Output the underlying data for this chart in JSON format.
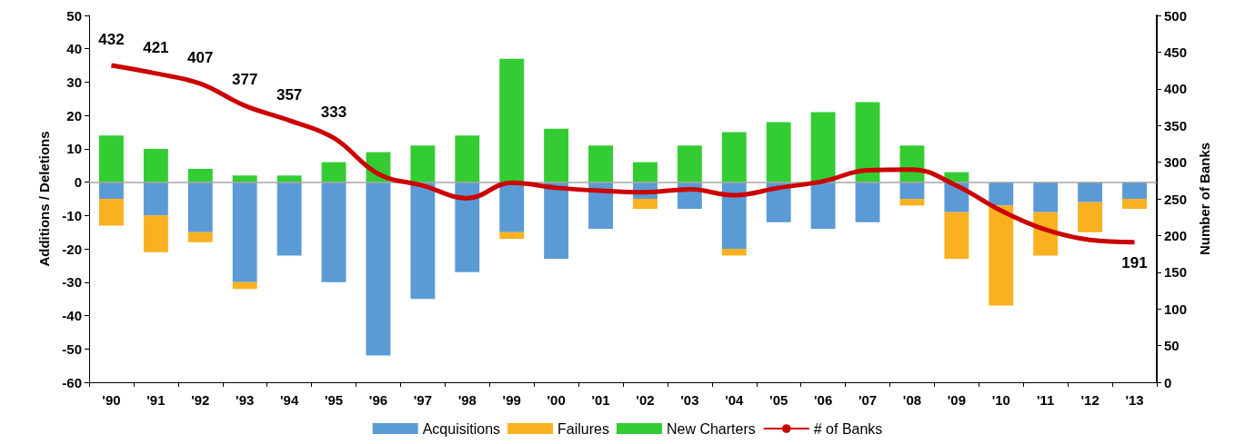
{
  "chart_data": {
    "type": "bar",
    "stacked": true,
    "ylabel": "Additions / Deletions",
    "y2label": "Number of Banks",
    "categories": [
      "'90",
      "'91",
      "'92",
      "'93",
      "'94",
      "'95",
      "'96",
      "'97",
      "'98",
      "'99",
      "'00",
      "'01",
      "'02",
      "'03",
      "'04",
      "'05",
      "'06",
      "'07",
      "'08",
      "'09",
      "'10",
      "'11",
      "'12",
      "'13"
    ],
    "series": [
      {
        "name": "Acquisitions",
        "color": "#5b9bd5",
        "values": [
          -5,
          -10,
          -15,
          -30,
          -22,
          -30,
          -52,
          -35,
          -27,
          -15,
          -23,
          -14,
          -5,
          -8,
          -20,
          -12,
          -14,
          -12,
          -5,
          -9,
          -7,
          -9,
          -6,
          -5
        ]
      },
      {
        "name": "Failures",
        "color": "#f9b120",
        "values": [
          -8,
          -11,
          -3,
          -2,
          0,
          0,
          0,
          0,
          0,
          -2,
          0,
          0,
          -3,
          0,
          -2,
          0,
          0,
          0,
          -2,
          -14,
          -30,
          -13,
          -9,
          -3
        ]
      },
      {
        "name": "New Charters",
        "color": "#33cc33",
        "values": [
          14,
          10,
          4,
          2,
          2,
          6,
          9,
          11,
          14,
          37,
          16,
          11,
          6,
          11,
          15,
          18,
          21,
          24,
          11,
          3,
          0,
          0,
          0,
          0
        ]
      },
      {
        "name": "# of Banks",
        "type": "line",
        "axis": "y2",
        "color": "#cc0000",
        "values": [
          432,
          421,
          407,
          377,
          357,
          333,
          284,
          268,
          251,
          272,
          265,
          261,
          259,
          263,
          255,
          265,
          274,
          289,
          290,
          268,
          234,
          208,
          194,
          191
        ],
        "value_labels": [
          "432",
          "421",
          "407",
          "377",
          "357",
          "333",
          null,
          null,
          null,
          null,
          null,
          null,
          null,
          null,
          null,
          null,
          null,
          null,
          null,
          null,
          null,
          null,
          null,
          "191"
        ]
      }
    ],
    "ylim": [
      -60,
      50
    ],
    "yticks": [
      -60,
      -50,
      -40,
      -30,
      -20,
      -10,
      0,
      10,
      20,
      30,
      40,
      50
    ],
    "y2lim": [
      0,
      500
    ],
    "y2ticks": [
      0,
      50,
      100,
      150,
      200,
      250,
      300,
      350,
      400,
      450,
      500
    ],
    "ref_lines": [
      {
        "axis": "y",
        "value": 0,
        "color": "#a6a6a6"
      }
    ],
    "grid": false,
    "legend": "bottom",
    "marker": "none"
  }
}
